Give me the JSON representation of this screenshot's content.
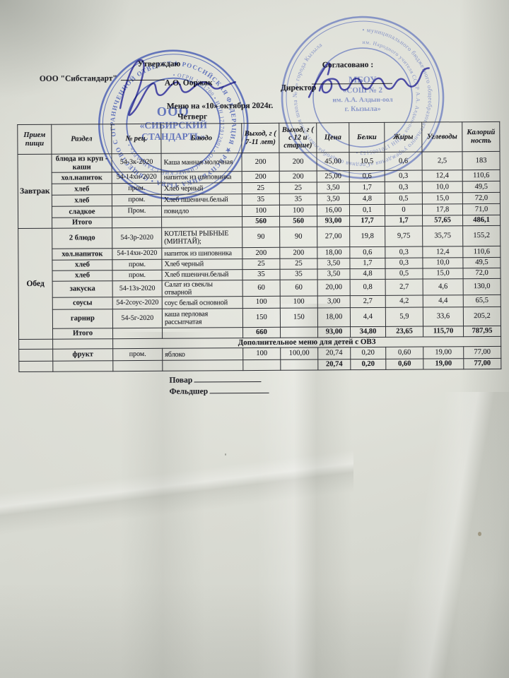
{
  "header": {
    "company": "ООО \"Сибстандарт\"",
    "approve_label": "Утверждаю",
    "approver_name": "А.О. Ооржак",
    "agreed_label": "Согласовано :",
    "director_label": "Директор",
    "menu_title": "Меню на «10» октября  2024г.",
    "weekday": "Четверг"
  },
  "stamps": {
    "company": {
      "ring_outer": "★ РОССИЙСКАЯ ФЕДЕРАЦИЯ ★ РЕСПУБЛИКА ТЫВА • ОБЩЕСТВО С ОГРАНИЧЕННОЙ ОТВЕТСТВЕННОСТЬЮ •",
      "ring_inner": "• ОГРН 1201700 • ИНН 1717012001 • ООО «СИБИРСКИЙ СТАНДАРТ» •",
      "center_line1": "ООО",
      "center_line2": "«СИБИРСКИЙ",
      "center_line3": "СТАНДАРТЬ»"
    },
    "school": {
      "ring_outer": "• муниципального бюджетного общеобразовательного учреждения «Средняя общеобразовательная школа № 2» города Кызыла",
      "ring_inner": "им. Народного учителя СССР А.А. Алдын-оол • ИНН 1701005152 •",
      "center_line1": "МБОУ",
      "center_line2": "«СОШ № 2",
      "center_line3": "им. А.А. Алдын-оол",
      "center_line4": "г. Кызыла»"
    }
  },
  "table": {
    "columns": [
      "Прием пищи",
      "Раздел",
      "№ рец.",
      "Блюдо",
      "Выход, г ( 7-11 лет)",
      "Выход, г ( с 12 и старше)",
      "Цена",
      "Белки",
      "Жиры",
      "Углеводы",
      "Калорий ность"
    ],
    "sections": [
      {
        "meal": "Завтрак",
        "rows": [
          {
            "cells": [
              "блюда из круп - каши",
              "54-3к-2020",
              "Каша манная молочная",
              "200",
              "200",
              "45,00",
              "10,5",
              "0,6",
              "2,5",
              "183"
            ]
          },
          {
            "cells": [
              "хол.напиток",
              "54-14хн-2020",
              "напиток из шиповника",
              "200",
              "200",
              "25,00",
              "0,6",
              "0,3",
              "12,4",
              "110,6"
            ]
          },
          {
            "cells": [
              "хлеб",
              "пром.",
              "Хлеб черный",
              "25",
              "25",
              "3,50",
              "1,7",
              "0,3",
              "10,0",
              "49,5"
            ]
          },
          {
            "cells": [
              "хлеб",
              "пром.",
              "Хлеб пшеничн.белый",
              "35",
              "35",
              "3,50",
              "4,8",
              "0,5",
              "15,0",
              "72,0"
            ]
          },
          {
            "cells": [
              "сладкое",
              "Пром.",
              "повидло",
              "100",
              "100",
              "16,00",
              "0,1",
              "0",
              "17,8",
              "71,0"
            ]
          },
          {
            "cells": [
              "Итого",
              "",
              "",
              "560",
              "560",
              "93,00",
              "17,7",
              "1,7",
              "57,65",
              "486,1"
            ],
            "total": true
          }
        ]
      },
      {
        "meal": "Обед",
        "rows": [
          {
            "cells": [
              "2 блюдо",
              "54-3р-2020",
              "КОТЛЕТЫ РЫБНЫЕ (МИНТАЙ);",
              "90",
              "90",
              "27,00",
              "19,8",
              "9,75",
              "35,75",
              "155,2"
            ]
          },
          {
            "cells": [
              "хол.напиток",
              "54-14хн-2020",
              "напиток из шиповника",
              "200",
              "200",
              "18,00",
              "0,6",
              "0,3",
              "12,4",
              "110,6"
            ]
          },
          {
            "cells": [
              "хлеб",
              "пром.",
              "Хлеб черный",
              "25",
              "25",
              "3,50",
              "1,7",
              "0,3",
              "10,0",
              "49,5"
            ]
          },
          {
            "cells": [
              "хлеб",
              "пром.",
              "Хлеб пшеничн.белый",
              "35",
              "35",
              "3,50",
              "4,8",
              "0,5",
              "15,0",
              "72,0"
            ]
          },
          {
            "cells": [
              "закуска",
              "54-13з-2020",
              "Салат из свеклы отварной",
              "60",
              "60",
              "20,00",
              "0,8",
              "2,7",
              "4,6",
              "130,0"
            ]
          },
          {
            "cells": [
              "соусы",
              "54-2соус-2020",
              "соус белый основной",
              "100",
              "100",
              "3,00",
              "2,7",
              "4,2",
              "4,4",
              "65,5"
            ]
          },
          {
            "cells": [
              "гарнир",
              "54-5г-2020",
              "каша перловая рассыпчатая",
              "150",
              "150",
              "18,00",
              "4,4",
              "5,9",
              "33,6",
              "205,2"
            ]
          },
          {
            "cells": [
              "Итого",
              "",
              "",
              "660",
              "",
              "93,00",
              "34,80",
              "23,65",
              "115,70",
              "787,95"
            ],
            "total": true
          }
        ]
      }
    ],
    "extra": {
      "title": "Дополнительное меню для детей с ОВЗ",
      "rows": [
        {
          "cells": [
            "",
            "фрукт",
            "пром.",
            "яблоко",
            "100",
            "100,00",
            "20,74",
            "0,20",
            "0,60",
            "19,00",
            "77,00"
          ]
        },
        {
          "cells": [
            "",
            "",
            "",
            "",
            "",
            "",
            "20,74",
            "0,20",
            "0,60",
            "19,00",
            "77,00"
          ],
          "total": true
        }
      ]
    }
  },
  "footer": {
    "cook_label": "Повар",
    "feldsher_label": "Фельдшер"
  }
}
